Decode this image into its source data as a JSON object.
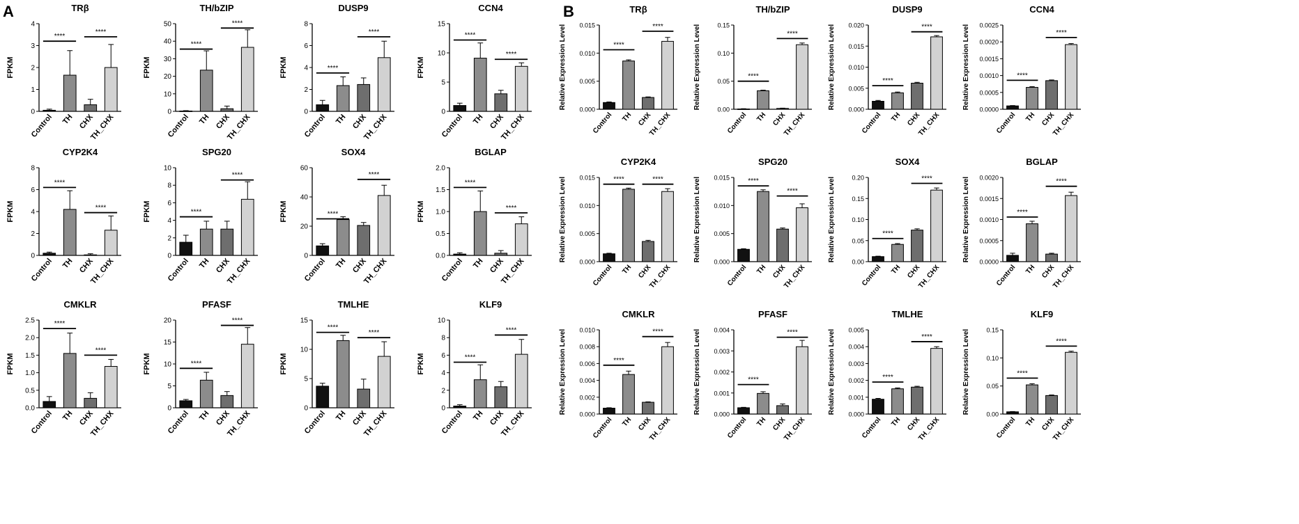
{
  "panels": [
    {
      "letter": "A",
      "ylabel": "FPKM",
      "charts": [
        {
          "title": "TRβ",
          "ylim": [
            0,
            4
          ],
          "ticks": [
            "0",
            "1",
            "2",
            "3",
            "4"
          ],
          "values": [
            0.05,
            1.65,
            0.3,
            2.0
          ],
          "errors": [
            0.05,
            1.12,
            0.25,
            1.05
          ],
          "brackets": [
            {
              "from": 0,
              "to": 1,
              "y": 3.2,
              "label": "****"
            },
            {
              "from": 2,
              "to": 3,
              "y": 3.4,
              "label": "****"
            }
          ]
        },
        {
          "title": "TH/bZIP",
          "ylim": [
            0,
            50
          ],
          "ticks": [
            "0",
            "10",
            "20",
            "30",
            "40",
            "50"
          ],
          "values": [
            0.2,
            23.5,
            1.5,
            36.5
          ],
          "errors": [
            0.2,
            11.0,
            1.5,
            10.0
          ],
          "brackets": [
            {
              "from": 0,
              "to": 1,
              "y": 35.5,
              "label": "****"
            },
            {
              "from": 2,
              "to": 3,
              "y": 47.5,
              "label": "****"
            }
          ]
        },
        {
          "title": "DUSP9",
          "ylim": [
            0,
            8
          ],
          "ticks": [
            "0",
            "2",
            "4",
            "6",
            "8"
          ],
          "values": [
            0.6,
            2.35,
            2.45,
            4.9
          ],
          "errors": [
            0.4,
            0.8,
            0.6,
            1.5
          ],
          "brackets": [
            {
              "from": 0,
              "to": 1,
              "y": 3.5,
              "label": "****"
            },
            {
              "from": 2,
              "to": 3,
              "y": 6.8,
              "label": "****"
            }
          ]
        },
        {
          "title": "CCN4",
          "ylim": [
            0,
            15
          ],
          "ticks": [
            "0",
            "5",
            "10",
            "15"
          ],
          "values": [
            1.0,
            9.1,
            3.0,
            7.7
          ],
          "errors": [
            0.4,
            2.6,
            0.6,
            0.6
          ],
          "brackets": [
            {
              "from": 0,
              "to": 1,
              "y": 12.2,
              "label": "****"
            },
            {
              "from": 2,
              "to": 3,
              "y": 8.9,
              "label": "****"
            }
          ]
        },
        {
          "title": "CYP2K4",
          "ylim": [
            0,
            8
          ],
          "ticks": [
            "0",
            "2",
            "4",
            "6",
            "8"
          ],
          "values": [
            0.2,
            4.2,
            0.05,
            2.3
          ],
          "errors": [
            0.1,
            1.7,
            0.1,
            1.3
          ],
          "brackets": [
            {
              "from": 0,
              "to": 1,
              "y": 6.2,
              "label": "****"
            },
            {
              "from": 2,
              "to": 3,
              "y": 3.9,
              "label": "****"
            }
          ]
        },
        {
          "title": "SPG20",
          "ylim": [
            0,
            10
          ],
          "ticks": [
            "0",
            "2",
            "4",
            "6",
            "8",
            "10"
          ],
          "values": [
            1.5,
            3.0,
            3.0,
            6.4
          ],
          "errors": [
            0.8,
            0.9,
            0.9,
            2.0
          ],
          "brackets": [
            {
              "from": 0,
              "to": 1,
              "y": 4.4,
              "label": "****"
            },
            {
              "from": 2,
              "to": 3,
              "y": 8.6,
              "label": "****"
            }
          ]
        },
        {
          "title": "SOX4",
          "ylim": [
            0,
            60
          ],
          "ticks": [
            "0",
            "20",
            "40",
            "60"
          ],
          "values": [
            6.5,
            24.5,
            20.5,
            41.0
          ],
          "errors": [
            1.5,
            2.0,
            2.0,
            7.0
          ],
          "brackets": [
            {
              "from": 0,
              "to": 1,
              "y": 25.0,
              "label": "****"
            },
            {
              "from": 2,
              "to": 3,
              "y": 52.0,
              "label": "****"
            }
          ]
        },
        {
          "title": "BGLAP",
          "ylim": [
            0,
            2.0
          ],
          "ticks": [
            "0.0",
            "0.5",
            "1.0",
            "1.5",
            "2.0"
          ],
          "values": [
            0.03,
            1.0,
            0.05,
            0.72
          ],
          "errors": [
            0.03,
            0.47,
            0.06,
            0.16
          ],
          "brackets": [
            {
              "from": 0,
              "to": 1,
              "y": 1.55,
              "label": "****"
            },
            {
              "from": 2,
              "to": 3,
              "y": 0.97,
              "label": "****"
            }
          ]
        },
        {
          "title": "CMKLR",
          "ylim": [
            0,
            2.5
          ],
          "ticks": [
            "0.0",
            "0.5",
            "1.0",
            "1.5",
            "2.0",
            "2.5"
          ],
          "values": [
            0.18,
            1.55,
            0.27,
            1.18
          ],
          "errors": [
            0.14,
            0.58,
            0.16,
            0.2
          ],
          "brackets": [
            {
              "from": 0,
              "to": 1,
              "y": 2.26,
              "label": "****"
            },
            {
              "from": 2,
              "to": 3,
              "y": 1.5,
              "label": "****"
            }
          ]
        },
        {
          "title": "PFASF",
          "ylim": [
            0,
            20
          ],
          "ticks": [
            "0",
            "5",
            "10",
            "15",
            "20"
          ],
          "values": [
            1.6,
            6.3,
            2.8,
            14.5
          ],
          "errors": [
            0.3,
            1.8,
            0.9,
            3.8
          ],
          "brackets": [
            {
              "from": 0,
              "to": 1,
              "y": 9.0,
              "label": "****"
            },
            {
              "from": 2,
              "to": 3,
              "y": 18.8,
              "label": "****"
            }
          ]
        },
        {
          "title": "TMLHE",
          "ylim": [
            0,
            15
          ],
          "ticks": [
            "0",
            "5",
            "10",
            "15"
          ],
          "values": [
            3.7,
            11.5,
            3.2,
            8.8
          ],
          "errors": [
            0.5,
            0.9,
            1.7,
            2.5
          ],
          "brackets": [
            {
              "from": 0,
              "to": 1,
              "y": 12.9,
              "label": "****"
            },
            {
              "from": 2,
              "to": 3,
              "y": 12.0,
              "label": "****"
            }
          ]
        },
        {
          "title": "KLF9",
          "ylim": [
            0,
            10
          ],
          "ticks": [
            "0",
            "2",
            "4",
            "6",
            "8",
            "10"
          ],
          "values": [
            0.2,
            3.2,
            2.4,
            6.1
          ],
          "errors": [
            0.15,
            1.7,
            0.6,
            1.7
          ],
          "brackets": [
            {
              "from": 0,
              "to": 1,
              "y": 5.2,
              "label": "****"
            },
            {
              "from": 2,
              "to": 3,
              "y": 8.3,
              "label": "****"
            }
          ]
        }
      ]
    },
    {
      "letter": "B",
      "ylabel": "Relative Expression Level",
      "charts": [
        {
          "title": "TRβ",
          "ylim": [
            0,
            0.015
          ],
          "ticks": [
            "0.000",
            "0.005",
            "0.010",
            "0.015"
          ],
          "values": [
            0.0012,
            0.0086,
            0.0021,
            0.0121
          ],
          "errors": [
            0.0001,
            0.0002,
            0.0001,
            0.0007
          ],
          "brackets": [
            {
              "from": 0,
              "to": 1,
              "y": 0.0106,
              "label": "****"
            },
            {
              "from": 2,
              "to": 3,
              "y": 0.0139,
              "label": "****"
            }
          ]
        },
        {
          "title": "TH/bZIP",
          "ylim": [
            0,
            0.15
          ],
          "ticks": [
            "0.00",
            "0.05",
            "0.10",
            "0.15"
          ],
          "values": [
            0.0005,
            0.033,
            0.0015,
            0.115
          ],
          "errors": [
            0.0005,
            0.001,
            0.0005,
            0.003
          ],
          "brackets": [
            {
              "from": 0,
              "to": 1,
              "y": 0.05,
              "label": "****"
            },
            {
              "from": 2,
              "to": 3,
              "y": 0.126,
              "label": "****"
            }
          ]
        },
        {
          "title": "DUSP9",
          "ylim": [
            0,
            0.02
          ],
          "ticks": [
            "0.000",
            "0.005",
            "0.010",
            "0.015",
            "0.020"
          ],
          "values": [
            0.0019,
            0.0039,
            0.0062,
            0.0172
          ],
          "errors": [
            0.0002,
            0.0002,
            0.0002,
            0.0003
          ],
          "brackets": [
            {
              "from": 0,
              "to": 1,
              "y": 0.0056,
              "label": "****"
            },
            {
              "from": 2,
              "to": 3,
              "y": 0.0184,
              "label": "****"
            }
          ]
        },
        {
          "title": "CCN4",
          "ylim": [
            0,
            0.0025
          ],
          "ticks": [
            "0.0000",
            "0.0005",
            "0.0010",
            "0.0015",
            "0.0020",
            "0.0025"
          ],
          "values": [
            0.0001,
            0.00065,
            0.00085,
            0.00192
          ],
          "errors": [
            1e-05,
            2e-05,
            2e-05,
            3e-05
          ],
          "brackets": [
            {
              "from": 0,
              "to": 1,
              "y": 0.00086,
              "label": "****"
            },
            {
              "from": 2,
              "to": 3,
              "y": 0.00213,
              "label": "****"
            }
          ]
        },
        {
          "title": "CYP2K4",
          "ylim": [
            0,
            0.015
          ],
          "ticks": [
            "0.000",
            "0.005",
            "0.010",
            "0.015"
          ],
          "values": [
            0.0014,
            0.0129,
            0.0036,
            0.0125
          ],
          "errors": [
            0.0001,
            0.0002,
            0.0002,
            0.0005
          ],
          "brackets": [
            {
              "from": 0,
              "to": 1,
              "y": 0.0138,
              "label": "****"
            },
            {
              "from": 2,
              "to": 3,
              "y": 0.0138,
              "label": "****"
            }
          ]
        },
        {
          "title": "SPG20",
          "ylim": [
            0,
            0.015
          ],
          "ticks": [
            "0.000",
            "0.005",
            "0.010",
            "0.015"
          ],
          "values": [
            0.0022,
            0.0125,
            0.0058,
            0.0096
          ],
          "errors": [
            0.0001,
            0.0003,
            0.0002,
            0.0007
          ],
          "brackets": [
            {
              "from": 0,
              "to": 1,
              "y": 0.0135,
              "label": "****"
            },
            {
              "from": 2,
              "to": 3,
              "y": 0.0117,
              "label": "****"
            }
          ]
        },
        {
          "title": "SOX4",
          "ylim": [
            0,
            0.2
          ],
          "ticks": [
            "0.00",
            "0.05",
            "0.10",
            "0.15",
            "0.20"
          ],
          "values": [
            0.012,
            0.041,
            0.075,
            0.17
          ],
          "errors": [
            0.001,
            0.002,
            0.003,
            0.005
          ],
          "brackets": [
            {
              "from": 0,
              "to": 1,
              "y": 0.055,
              "label": "****"
            },
            {
              "from": 2,
              "to": 3,
              "y": 0.186,
              "label": "****"
            }
          ]
        },
        {
          "title": "BGLAP",
          "ylim": [
            0,
            0.002
          ],
          "ticks": [
            "0.0000",
            "0.0005",
            "0.0010",
            "0.0015",
            "0.0020"
          ],
          "values": [
            0.00015,
            0.0009,
            0.00018,
            0.00157
          ],
          "errors": [
            5e-05,
            6e-05,
            2e-05,
            8e-05
          ],
          "brackets": [
            {
              "from": 0,
              "to": 1,
              "y": 0.00106,
              "label": "****"
            },
            {
              "from": 2,
              "to": 3,
              "y": 0.00179,
              "label": "****"
            }
          ]
        },
        {
          "title": "CMKLR",
          "ylim": [
            0,
            0.01
          ],
          "ticks": [
            "0.000",
            "0.002",
            "0.004",
            "0.006",
            "0.008",
            "0.010"
          ],
          "values": [
            0.0007,
            0.0047,
            0.0014,
            0.008
          ],
          "errors": [
            5e-05,
            0.0004,
            5e-05,
            0.0005
          ],
          "brackets": [
            {
              "from": 0,
              "to": 1,
              "y": 0.0058,
              "label": "****"
            },
            {
              "from": 2,
              "to": 3,
              "y": 0.0092,
              "label": "****"
            }
          ]
        },
        {
          "title": "PFASF",
          "ylim": [
            0,
            0.004
          ],
          "ticks": [
            "0.000",
            "0.001",
            "0.002",
            "0.003",
            "0.004"
          ],
          "values": [
            0.0003,
            0.00098,
            0.0004,
            0.0032
          ],
          "errors": [
            2e-05,
            8e-05,
            8e-05,
            0.0003
          ],
          "brackets": [
            {
              "from": 0,
              "to": 1,
              "y": 0.0014,
              "label": "****"
            },
            {
              "from": 2,
              "to": 3,
              "y": 0.00365,
              "label": "****"
            }
          ]
        },
        {
          "title": "TMLHE",
          "ylim": [
            0,
            0.005
          ],
          "ticks": [
            "0.000",
            "0.001",
            "0.002",
            "0.003",
            "0.004",
            "0.005"
          ],
          "values": [
            0.00088,
            0.0015,
            0.0016,
            0.0039
          ],
          "errors": [
            5e-05,
            5e-05,
            5e-05,
            0.0001
          ],
          "brackets": [
            {
              "from": 0,
              "to": 1,
              "y": 0.0019,
              "label": "****"
            },
            {
              "from": 2,
              "to": 3,
              "y": 0.0043,
              "label": "****"
            }
          ]
        },
        {
          "title": "KLF9",
          "ylim": [
            0,
            0.15
          ],
          "ticks": [
            "0.00",
            "0.05",
            "0.10",
            "0.15"
          ],
          "values": [
            0.004,
            0.052,
            0.033,
            0.11
          ],
          "errors": [
            0.0005,
            0.002,
            0.001,
            0.002
          ],
          "brackets": [
            {
              "from": 0,
              "to": 1,
              "y": 0.064,
              "label": "****"
            },
            {
              "from": 2,
              "to": 3,
              "y": 0.121,
              "label": "****"
            }
          ]
        }
      ]
    }
  ],
  "chart_data": {
    "type": "bar",
    "categories": [
      "Control",
      "TH",
      "CHX",
      "TH_CHX"
    ],
    "colors": [
      "#111111",
      "#8c8c8c",
      "#6e6e6e",
      "#d2d2d2"
    ],
    "description_source": "panels",
    "significance_label": "****"
  }
}
